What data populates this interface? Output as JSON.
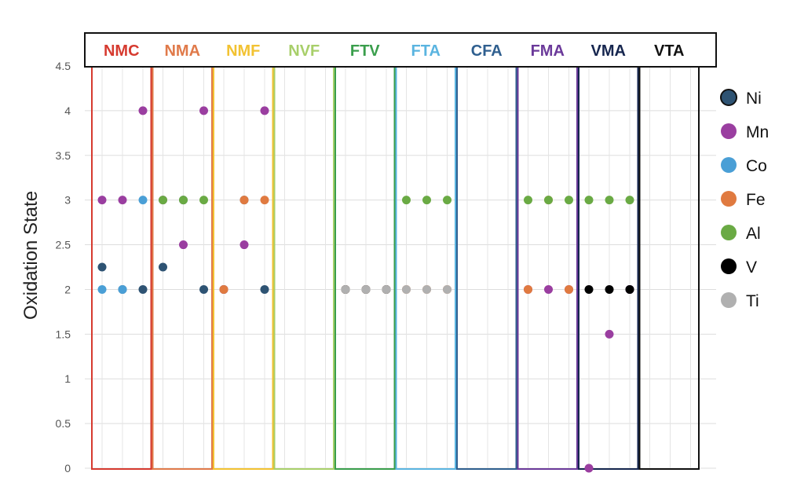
{
  "chart_data": {
    "type": "scatter",
    "ylabel": "Oxidation State",
    "ylim": [
      0,
      4.5
    ],
    "y_ticks": [
      "0",
      "0.5",
      "1",
      "1.5",
      "2",
      "2.5",
      "3",
      "3.5",
      "4",
      "4.5"
    ],
    "grid": true,
    "legend_position": "right",
    "groups": [
      {
        "name": "NMC",
        "color": "#d63a2f"
      },
      {
        "name": "NMA",
        "color": "#e07a4a"
      },
      {
        "name": "NMF",
        "color": "#f2c232"
      },
      {
        "name": "NVF",
        "color": "#a8cf6a"
      },
      {
        "name": "FTV",
        "color": "#3a9e4c"
      },
      {
        "name": "FTA",
        "color": "#5ab4e0"
      },
      {
        "name": "CFA",
        "color": "#2f5f8f"
      },
      {
        "name": "FMA",
        "color": "#6b3a9a"
      },
      {
        "name": "VMA",
        "color": "#16264f"
      },
      {
        "name": "VTA",
        "color": "#111111"
      }
    ],
    "series": [
      {
        "name": "Ni",
        "color": "#2e5373",
        "points": [
          {
            "group": "NMC",
            "slot": 0,
            "y": 2.25
          },
          {
            "group": "NMC",
            "slot": 1,
            "y": 2
          },
          {
            "group": "NMC",
            "slot": 2,
            "y": 2
          },
          {
            "group": "NMA",
            "slot": 0,
            "y": 2.25
          },
          {
            "group": "NMA",
            "slot": 1,
            "y": 3
          },
          {
            "group": "NMA",
            "slot": 2,
            "y": 2
          },
          {
            "group": "NMF",
            "slot": 0,
            "y": 2
          },
          {
            "group": "NMF",
            "slot": 1,
            "y": 3
          },
          {
            "group": "NMF",
            "slot": 2,
            "y": 2
          },
          {
            "group": "VMA",
            "slot": 2,
            "y": 2
          }
        ]
      },
      {
        "name": "Mn",
        "color": "#9a3ea0",
        "points": [
          {
            "group": "NMC",
            "slot": 0,
            "y": 3
          },
          {
            "group": "NMC",
            "slot": 1,
            "y": 3
          },
          {
            "group": "NMC",
            "slot": 2,
            "y": 4
          },
          {
            "group": "NMA",
            "slot": 0,
            "y": 3
          },
          {
            "group": "NMA",
            "slot": 1,
            "y": 2.5
          },
          {
            "group": "NMA",
            "slot": 2,
            "y": 4
          },
          {
            "group": "NMF",
            "slot": 0,
            "y": 2
          },
          {
            "group": "NMF",
            "slot": 1,
            "y": 2.5
          },
          {
            "group": "NMF",
            "slot": 2,
            "y": 4
          },
          {
            "group": "FMA",
            "slot": 0,
            "y": 2
          },
          {
            "group": "FMA",
            "slot": 1,
            "y": 2
          },
          {
            "group": "FMA",
            "slot": 2,
            "y": 2
          },
          {
            "group": "VMA",
            "slot": 0,
            "y": 0
          },
          {
            "group": "VMA",
            "slot": 1,
            "y": 1.5
          },
          {
            "group": "VMA",
            "slot": 2,
            "y": 2
          }
        ]
      },
      {
        "name": "Co",
        "color": "#4a9fd6",
        "points": [
          {
            "group": "NMC",
            "slot": 0,
            "y": 2
          },
          {
            "group": "NMC",
            "slot": 1,
            "y": 2
          },
          {
            "group": "NMC",
            "slot": 2,
            "y": 3
          }
        ]
      },
      {
        "name": "Fe",
        "color": "#e07a40",
        "points": [
          {
            "group": "NMF",
            "slot": 0,
            "y": 2
          },
          {
            "group": "NMF",
            "slot": 1,
            "y": 3
          },
          {
            "group": "NMF",
            "slot": 2,
            "y": 3
          },
          {
            "group": "FTV",
            "slot": 0,
            "y": 2
          },
          {
            "group": "FTV",
            "slot": 1,
            "y": 2
          },
          {
            "group": "FTV",
            "slot": 2,
            "y": 2
          },
          {
            "group": "FTA",
            "slot": 0,
            "y": 2
          },
          {
            "group": "FTA",
            "slot": 1,
            "y": 2
          },
          {
            "group": "FTA",
            "slot": 2,
            "y": 2
          },
          {
            "group": "FMA",
            "slot": 0,
            "y": 2
          },
          {
            "group": "FMA",
            "slot": 1,
            "y": 3
          },
          {
            "group": "FMA",
            "slot": 2,
            "y": 2
          }
        ]
      },
      {
        "name": "Al",
        "color": "#6aaa44",
        "points": [
          {
            "group": "NMA",
            "slot": 0,
            "y": 3
          },
          {
            "group": "NMA",
            "slot": 1,
            "y": 3
          },
          {
            "group": "NMA",
            "slot": 2,
            "y": 3
          },
          {
            "group": "FTA",
            "slot": 0,
            "y": 3
          },
          {
            "group": "FTA",
            "slot": 1,
            "y": 3
          },
          {
            "group": "FTA",
            "slot": 2,
            "y": 3
          },
          {
            "group": "FMA",
            "slot": 0,
            "y": 3
          },
          {
            "group": "FMA",
            "slot": 1,
            "y": 3
          },
          {
            "group": "FMA",
            "slot": 2,
            "y": 3
          },
          {
            "group": "VMA",
            "slot": 0,
            "y": 3
          },
          {
            "group": "VMA",
            "slot": 1,
            "y": 3
          },
          {
            "group": "VMA",
            "slot": 2,
            "y": 3
          }
        ]
      },
      {
        "name": "V",
        "color": "#000000",
        "points": [
          {
            "group": "FTV",
            "slot": 0,
            "y": 2
          },
          {
            "group": "FTV",
            "slot": 1,
            "y": 2
          },
          {
            "group": "FTV",
            "slot": 2,
            "y": 2
          },
          {
            "group": "VMA",
            "slot": 0,
            "y": 2
          },
          {
            "group": "VMA",
            "slot": 1,
            "y": 2
          },
          {
            "group": "VMA",
            "slot": 2,
            "y": 2
          }
        ]
      },
      {
        "name": "Ti",
        "color": "#b0b0b0",
        "points": [
          {
            "group": "FTV",
            "slot": 0,
            "y": 2
          },
          {
            "group": "FTV",
            "slot": 1,
            "y": 2
          },
          {
            "group": "FTV",
            "slot": 2,
            "y": 2
          },
          {
            "group": "FTA",
            "slot": 0,
            "y": 2
          },
          {
            "group": "FTA",
            "slot": 1,
            "y": 2
          },
          {
            "group": "FTA",
            "slot": 2,
            "y": 2
          }
        ]
      }
    ]
  }
}
